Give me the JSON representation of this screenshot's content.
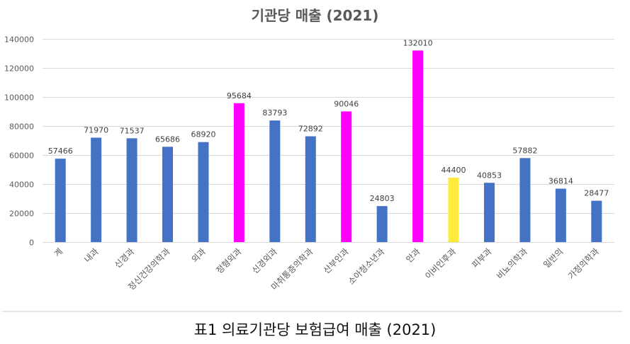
{
  "chart_data": {
    "type": "bar",
    "title": "기관당 매출 (2021)",
    "xlabel": "",
    "ylabel": "",
    "ylim": [
      0,
      140000
    ],
    "yticks": [
      0,
      20000,
      40000,
      60000,
      80000,
      100000,
      120000,
      140000
    ],
    "grid": true,
    "categories": [
      "계",
      "내과",
      "신경과",
      "정신건강의학과",
      "외과",
      "정형외과",
      "신경외과",
      "마취통증의학과",
      "산부인과",
      "소아청소년과",
      "안과",
      "이비인후과",
      "피부과",
      "비뇨의학과",
      "일반의",
      "가정의학과"
    ],
    "values": [
      57466,
      71970,
      71537,
      65686,
      68920,
      95684,
      83793,
      72892,
      90046,
      24803,
      132010,
      44400,
      40853,
      57882,
      36814,
      28477
    ],
    "bar_colors": [
      "#4472c4",
      "#4472c4",
      "#4472c4",
      "#4472c4",
      "#4472c4",
      "#ff00ff",
      "#4472c4",
      "#4472c4",
      "#ff00ff",
      "#4472c4",
      "#ff00ff",
      "#ffeb3b",
      "#4472c4",
      "#4472c4",
      "#4472c4",
      "#4472c4"
    ],
    "data_labels": true
  },
  "caption": "표1 의료기관당 보험급여 매출 (2021)",
  "colors": {
    "gridline": "#d9d9d9",
    "text": "#595959"
  }
}
